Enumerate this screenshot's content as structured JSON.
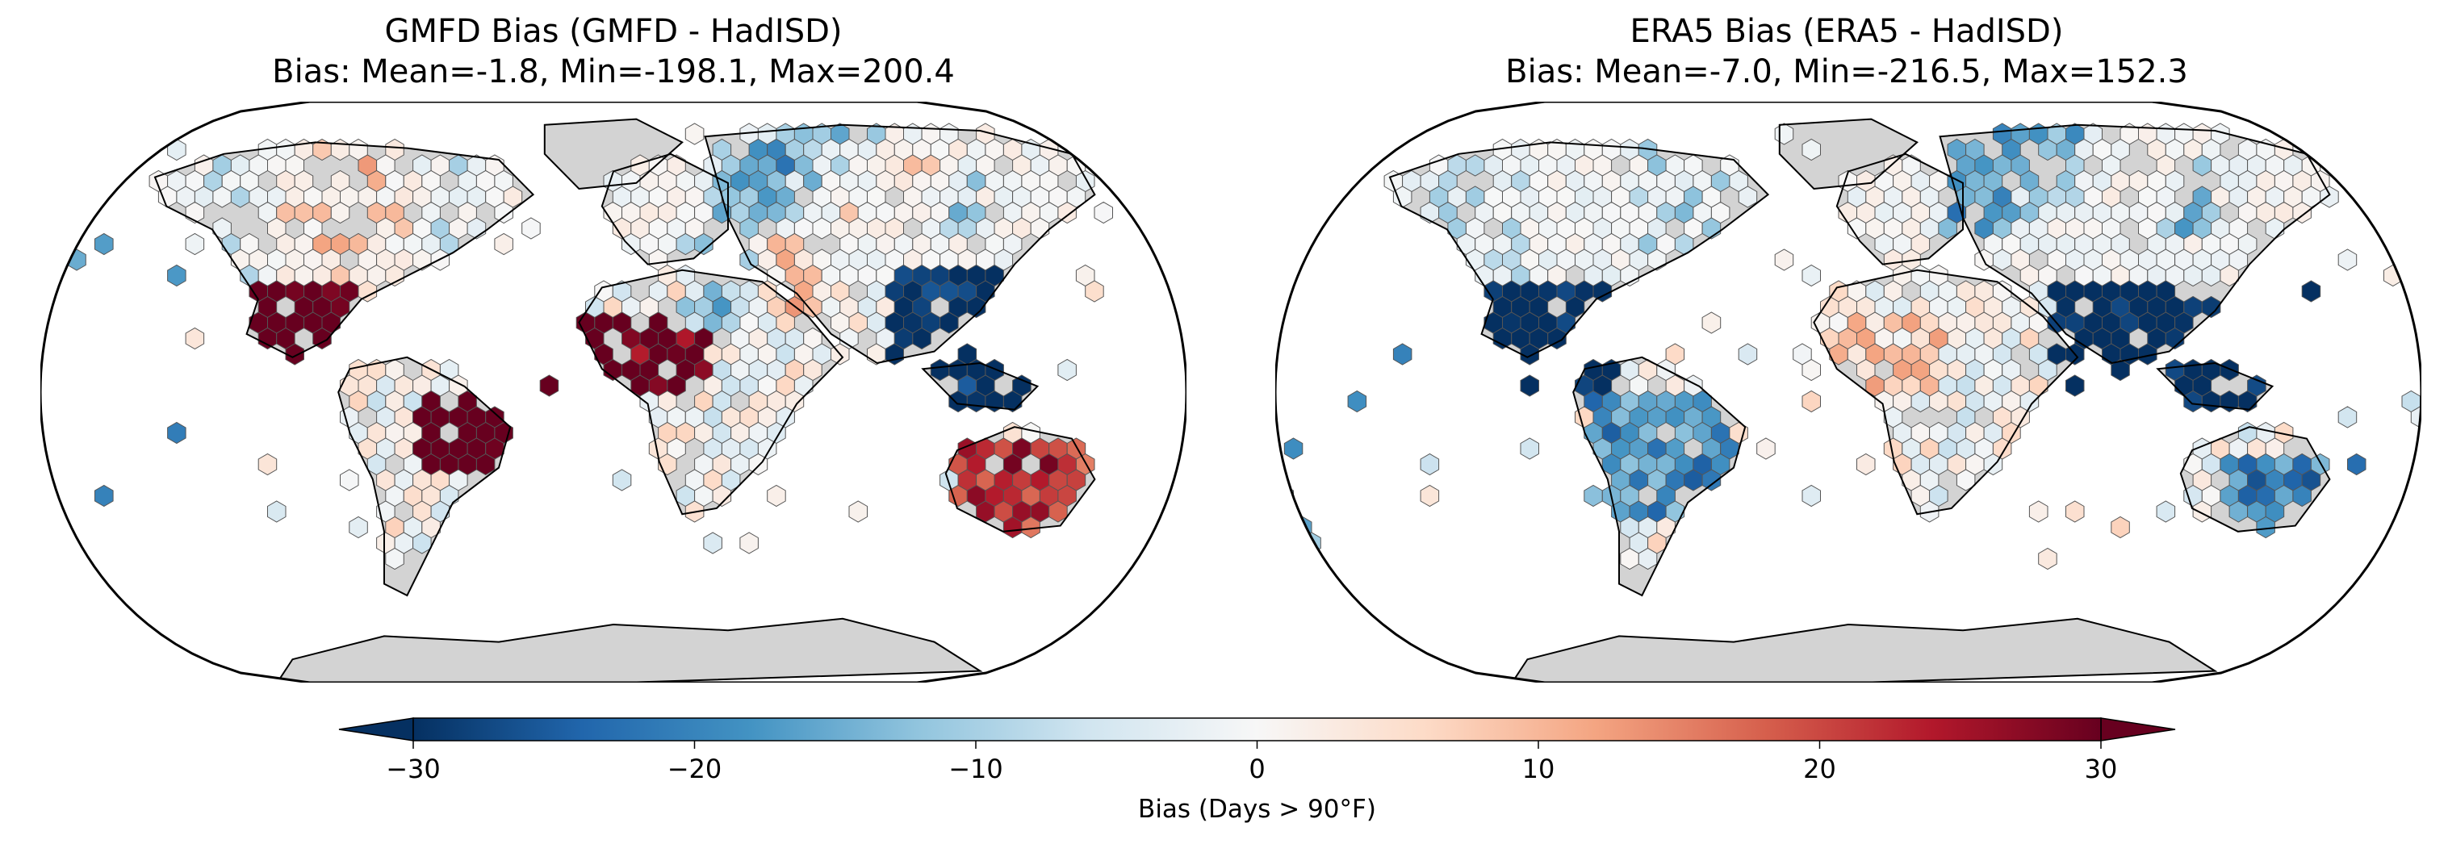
{
  "panels": [
    {
      "id": "gmfd",
      "title_line1": "GMFD Bias (GMFD - HadISD)",
      "title_line2": "Bias: Mean=-1.8, Min=-198.1, Max=200.4"
    },
    {
      "id": "era5",
      "title_line1": "ERA5 Bias (ERA5 - HadISD)",
      "title_line2": "Bias: Mean=-7.0, Min=-216.5, Max=152.3"
    }
  ],
  "colorbar": {
    "label": "Bias (Days > 90°F)",
    "min": -30,
    "max": 30,
    "ticks": [
      -30,
      -20,
      -10,
      0,
      10,
      20,
      30
    ],
    "tick_labels": [
      "−30",
      "−20",
      "−10",
      "0",
      "10",
      "20",
      "30"
    ],
    "colormap": "RdBu_r",
    "extend": "both",
    "stops": [
      "#053061",
      "#2166ac",
      "#4393c3",
      "#92c5de",
      "#d1e5f0",
      "#f7f7f7",
      "#fddbc7",
      "#f4a582",
      "#d6604d",
      "#b2182b",
      "#67001f"
    ]
  },
  "map": {
    "projection": "Robinson",
    "land_color": "#d3d3d3",
    "ocean_color": "#ffffff",
    "coastline_color": "#000000",
    "hex_edge_color": "#555555"
  }
}
